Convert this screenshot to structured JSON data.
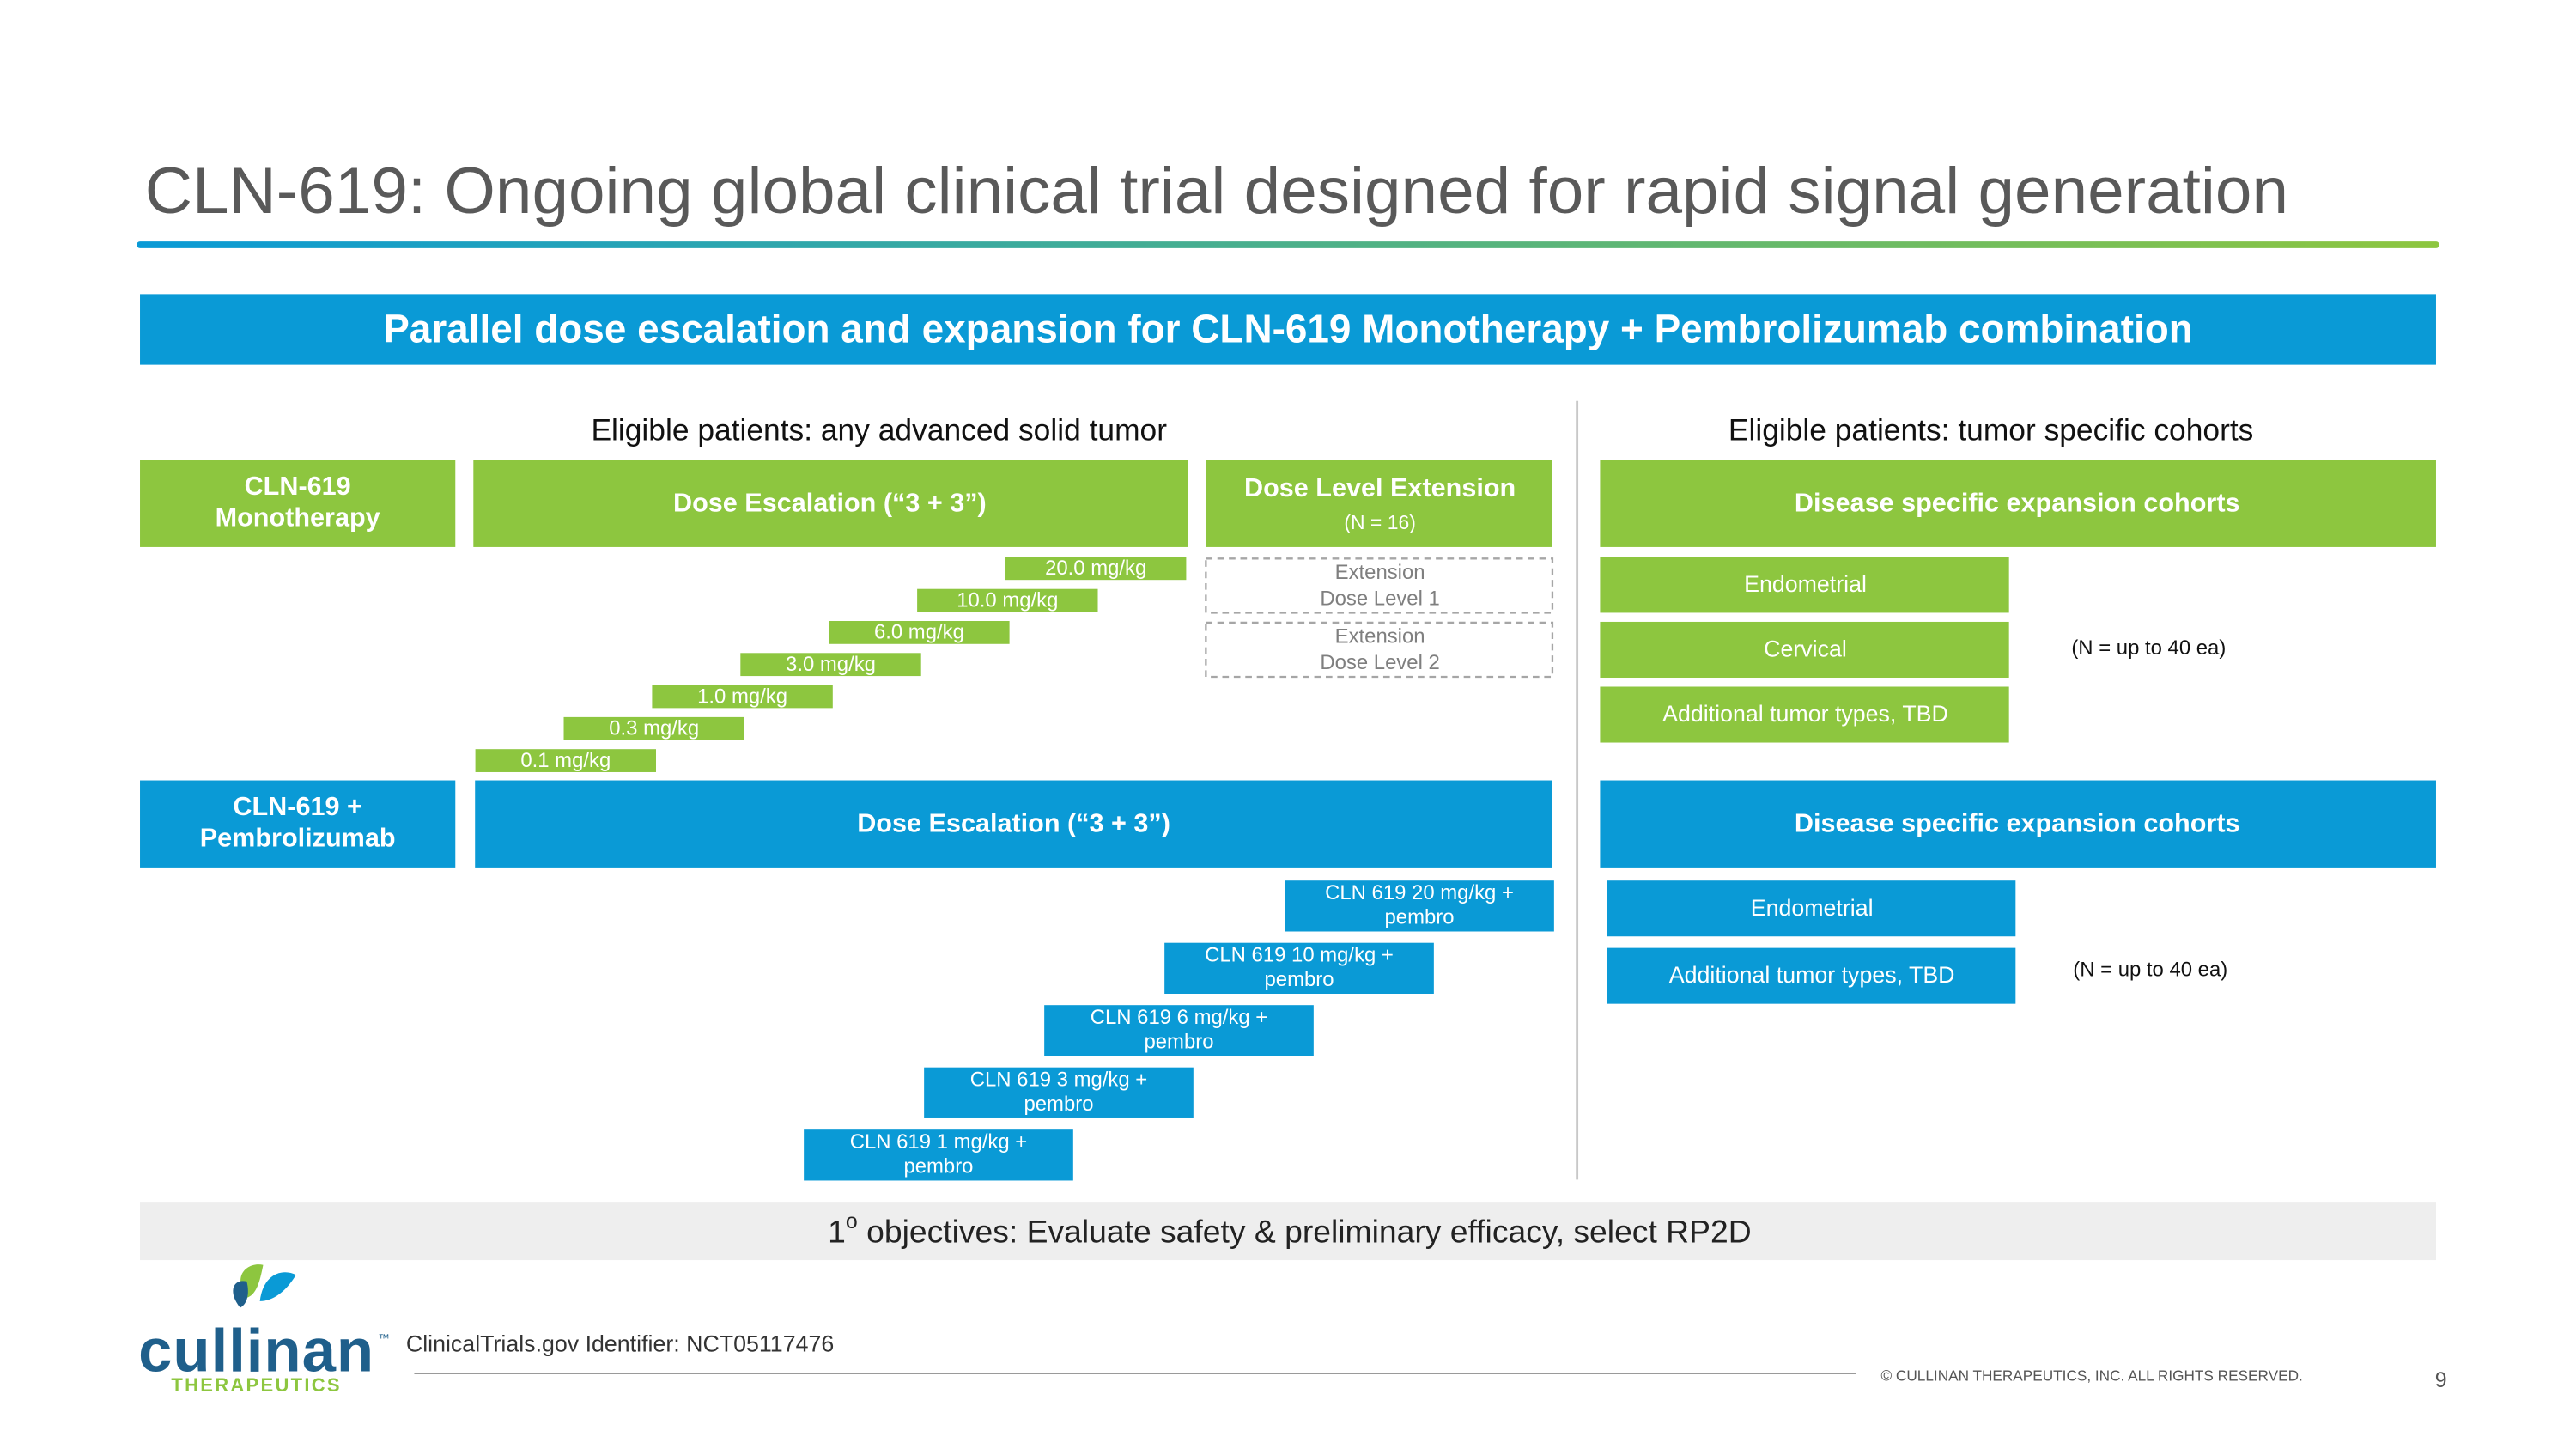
{
  "header": {
    "title": "CLN-619: Ongoing global clinical trial designed for rapid signal generation"
  },
  "banner": "Parallel dose escalation and expansion for CLN-619 Monotherapy + Pembrolizumab combination",
  "left_heading": "Eligible patients: any advanced solid tumor",
  "right_heading": "Eligible patients: tumor specific cohorts",
  "monotherapy": {
    "label_lines": [
      "CLN-619",
      "Monotherapy"
    ],
    "escalation": "Dose Escalation (“3 + 3”)",
    "extension": {
      "title": "Dose Level Extension",
      "n": "(N = 16)",
      "levels": [
        [
          "Extension",
          "Dose Level 1"
        ],
        [
          "Extension",
          "Dose Level 2"
        ]
      ]
    },
    "doses": [
      "20.0 mg/kg",
      "10.0 mg/kg",
      "6.0 mg/kg",
      "3.0 mg/kg",
      "1.0 mg/kg",
      "0.3 mg/kg",
      "0.1 mg/kg"
    ],
    "expansion": {
      "title": "Disease specific expansion cohorts",
      "cohorts": [
        "Endometrial",
        "Cervical",
        "Additional tumor types, TBD"
      ],
      "n": "(N = up to 40 ea)"
    }
  },
  "combination": {
    "label_lines": [
      "CLN-619 +",
      "Pembrolizumab"
    ],
    "escalation": "Dose Escalation (“3 + 3”)",
    "doses": [
      [
        "CLN 619 20 mg/kg +",
        "pembro"
      ],
      [
        "CLN 619 10 mg/kg +",
        "pembro"
      ],
      [
        "CLN 619 6 mg/kg +",
        "pembro"
      ],
      [
        "CLN 619 3 mg/kg +",
        "pembro"
      ],
      [
        "CLN 619 1 mg/kg +",
        "pembro"
      ]
    ],
    "expansion": {
      "title": "Disease specific expansion cohorts",
      "cohorts": [
        "Endometrial",
        "Additional tumor types, TBD"
      ],
      "n": "(N = up to 40 ea)"
    }
  },
  "objective": {
    "number": "1",
    "superscript": "o",
    "text": " objectives: Evaluate safety & preliminary efficacy, select RP2D"
  },
  "footer": {
    "logo": {
      "name": "cullinan",
      "tm": "™",
      "tagline": "THERAPEUTICS"
    },
    "identifier": "ClinicalTrials.gov Identifier: NCT05117476",
    "copyright": "© CULLINAN THERAPEUTICS, INC. ALL RIGHTS RESERVED.",
    "page": "9"
  }
}
